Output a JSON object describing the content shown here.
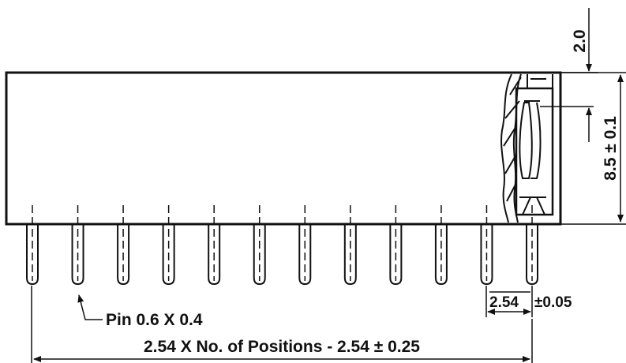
{
  "labels": {
    "top_gap": "2.0",
    "height": "8.5 ± 0.1",
    "pitch_value": "2.54",
    "pitch_tolerance": "±0.05",
    "pin_size": "Pin 0.6 X 0.4",
    "total_length": "2.54 X No. of Positions - 2.54 ± 0.25"
  },
  "pins": {
    "count": 12
  },
  "colors": {
    "stroke": "#111111",
    "background": "#ffffff"
  }
}
